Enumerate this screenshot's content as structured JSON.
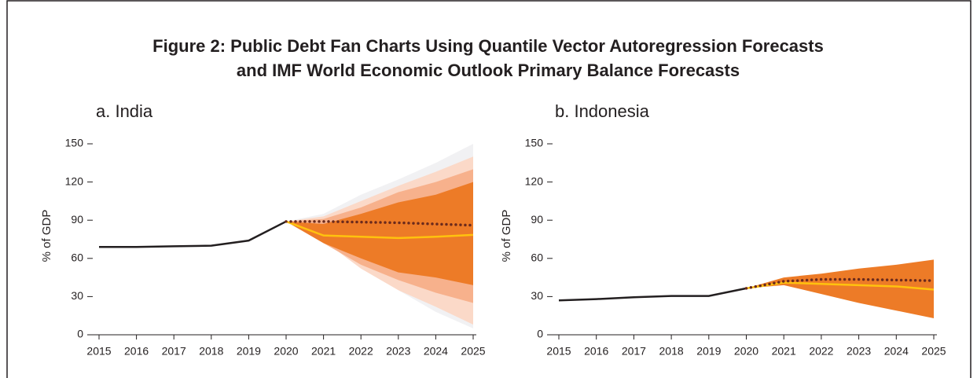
{
  "title_lines": [
    "Figure 2: Public Debt Fan Charts Using Quantile Vector Autoregression Forecasts",
    "and IMF World Economic Outlook Primary Balance Forecasts"
  ],
  "chart_data": [
    {
      "type": "fan",
      "title": "a. India",
      "y_label": "% of GDP",
      "x": [
        2015,
        2016,
        2017,
        2018,
        2019,
        2020,
        2021,
        2022,
        2023,
        2024,
        2025
      ],
      "xlim": [
        2015,
        2025
      ],
      "xticks": [
        2015,
        2016,
        2017,
        2018,
        2019,
        2020,
        2021,
        2022,
        2023,
        2024,
        2025
      ],
      "ylim": [
        0,
        150
      ],
      "yticks": [
        0,
        30,
        60,
        90,
        120,
        150
      ],
      "bands": [
        {
          "color": "#f1f1f3",
          "upper": [
            null,
            null,
            null,
            null,
            null,
            89,
            95,
            110,
            122,
            135,
            150
          ],
          "lower": [
            null,
            null,
            null,
            null,
            null,
            89,
            80,
            55,
            35,
            18,
            5
          ]
        },
        {
          "color": "#fbd9c8",
          "upper": [
            null,
            null,
            null,
            null,
            null,
            89,
            93,
            105,
            117,
            128,
            140
          ],
          "lower": [
            null,
            null,
            null,
            null,
            null,
            89,
            74,
            52,
            35,
            22,
            8
          ]
        },
        {
          "color": "#f7b18c",
          "upper": [
            null,
            null,
            null,
            null,
            null,
            89,
            91,
            100,
            112,
            120,
            130
          ],
          "lower": [
            null,
            null,
            null,
            null,
            null,
            89,
            72,
            55,
            43,
            33,
            25
          ]
        },
        {
          "color": "#ed7b27",
          "upper": [
            null,
            null,
            null,
            null,
            null,
            89,
            87,
            95,
            104,
            110,
            120
          ],
          "lower": [
            null,
            null,
            null,
            null,
            null,
            89,
            72,
            60,
            49,
            45,
            39
          ]
        }
      ],
      "series": [
        {
          "color": "#231f20",
          "style": "solid",
          "values": [
            69,
            69,
            69.5,
            70,
            74,
            89,
            null,
            null,
            null,
            null,
            null
          ]
        },
        {
          "color": "#ffc20e",
          "style": "solid",
          "values": [
            null,
            null,
            null,
            null,
            null,
            89,
            78,
            77,
            76,
            77,
            78.5
          ]
        },
        {
          "color": "#6b2a1c",
          "style": "dotted",
          "values": [
            null,
            null,
            null,
            null,
            null,
            89,
            89,
            88.5,
            88,
            87,
            86
          ]
        }
      ]
    },
    {
      "type": "fan",
      "title": "b. Indonesia",
      "y_label": "% of GDP",
      "x": [
        2015,
        2016,
        2017,
        2018,
        2019,
        2020,
        2021,
        2022,
        2023,
        2024,
        2025
      ],
      "xlim": [
        2015,
        2025
      ],
      "xticks": [
        2015,
        2016,
        2017,
        2018,
        2019,
        2020,
        2021,
        2022,
        2023,
        2024,
        2025
      ],
      "ylim": [
        0,
        150
      ],
      "yticks": [
        0,
        30,
        60,
        90,
        120,
        150
      ],
      "bands": [
        {
          "color": "#ed7b27",
          "upper": [
            null,
            null,
            null,
            null,
            null,
            36.5,
            45,
            48,
            52,
            55,
            59
          ],
          "lower": [
            null,
            null,
            null,
            null,
            null,
            36.5,
            39,
            32,
            25,
            19,
            13
          ]
        }
      ],
      "series": [
        {
          "color": "#231f20",
          "style": "solid",
          "values": [
            27,
            28,
            29.5,
            30.5,
            30.5,
            36.5,
            null,
            null,
            null,
            null,
            null
          ]
        },
        {
          "color": "#ffc20e",
          "style": "solid",
          "values": [
            null,
            null,
            null,
            null,
            null,
            36.5,
            41,
            40,
            39,
            38,
            35.5
          ]
        },
        {
          "color": "#6b2a1c",
          "style": "dotted",
          "values": [
            null,
            null,
            null,
            null,
            null,
            36.5,
            42,
            43.5,
            43.5,
            43,
            42.5
          ]
        }
      ]
    }
  ]
}
